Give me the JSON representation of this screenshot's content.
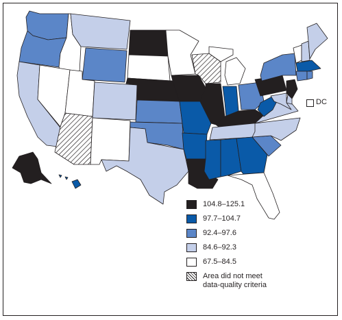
{
  "colors": {
    "class1": "#231f20",
    "class2": "#0a5aa8",
    "class3": "#5b86c8",
    "class4": "#c4cfe9",
    "class5": "#ffffff",
    "border": "#231f20",
    "hatch": "#231f20"
  },
  "dc": {
    "label": "DC",
    "category": "class5"
  },
  "legend": [
    {
      "key": "class1",
      "label": "104.8–125.1"
    },
    {
      "key": "class2",
      "label": "97.7–104.7"
    },
    {
      "key": "class3",
      "label": "92.4–97.6"
    },
    {
      "key": "class4",
      "label": "84.6–92.3"
    },
    {
      "key": "class5",
      "label": "67.5–84.5"
    },
    {
      "key": "hatch",
      "label": "Area did not meet",
      "label2": "data-quality criteria"
    }
  ],
  "states": [
    {
      "id": "WA",
      "category": "class3"
    },
    {
      "id": "OR",
      "category": "class3"
    },
    {
      "id": "CA",
      "category": "class4"
    },
    {
      "id": "ID",
      "category": "class5"
    },
    {
      "id": "NV",
      "category": "class5"
    },
    {
      "id": "MT",
      "category": "class4"
    },
    {
      "id": "WY",
      "category": "class3"
    },
    {
      "id": "UT",
      "category": "class5"
    },
    {
      "id": "AZ",
      "category": "hatch"
    },
    {
      "id": "CO",
      "category": "class4"
    },
    {
      "id": "NM",
      "category": "class5"
    },
    {
      "id": "ND",
      "category": "class1"
    },
    {
      "id": "SD",
      "category": "class5"
    },
    {
      "id": "NE",
      "category": "class1"
    },
    {
      "id": "KS",
      "category": "class3"
    },
    {
      "id": "OK",
      "category": "class3"
    },
    {
      "id": "TX",
      "category": "class4"
    },
    {
      "id": "MN",
      "category": "class5"
    },
    {
      "id": "IA",
      "category": "class1"
    },
    {
      "id": "MO",
      "category": "class2"
    },
    {
      "id": "AR",
      "category": "class2"
    },
    {
      "id": "LA",
      "category": "class1"
    },
    {
      "id": "WI",
      "category": "hatch"
    },
    {
      "id": "IL",
      "category": "class1"
    },
    {
      "id": "MI",
      "category": "class5"
    },
    {
      "id": "IN",
      "category": "class2"
    },
    {
      "id": "OH",
      "category": "class3"
    },
    {
      "id": "KY",
      "category": "class1"
    },
    {
      "id": "TN",
      "category": "class4"
    },
    {
      "id": "MS",
      "category": "class2"
    },
    {
      "id": "AL",
      "category": "class2"
    },
    {
      "id": "GA",
      "category": "class2"
    },
    {
      "id": "FL",
      "category": "class5"
    },
    {
      "id": "SC",
      "category": "class3"
    },
    {
      "id": "NC",
      "category": "class4"
    },
    {
      "id": "VA",
      "category": "class4"
    },
    {
      "id": "WV",
      "category": "class2"
    },
    {
      "id": "PA",
      "category": "class1"
    },
    {
      "id": "NY",
      "category": "class3"
    },
    {
      "id": "ME",
      "category": "class4"
    },
    {
      "id": "VT",
      "category": "class5"
    },
    {
      "id": "NH",
      "category": "class4"
    },
    {
      "id": "MA",
      "category": "class2"
    },
    {
      "id": "CT",
      "category": "class3"
    },
    {
      "id": "RI",
      "category": "class3"
    },
    {
      "id": "NJ",
      "category": "class1"
    },
    {
      "id": "DE",
      "category": "class4"
    },
    {
      "id": "MD",
      "category": "class4"
    },
    {
      "id": "AK",
      "category": "class1"
    },
    {
      "id": "HI",
      "category": "class2"
    }
  ]
}
